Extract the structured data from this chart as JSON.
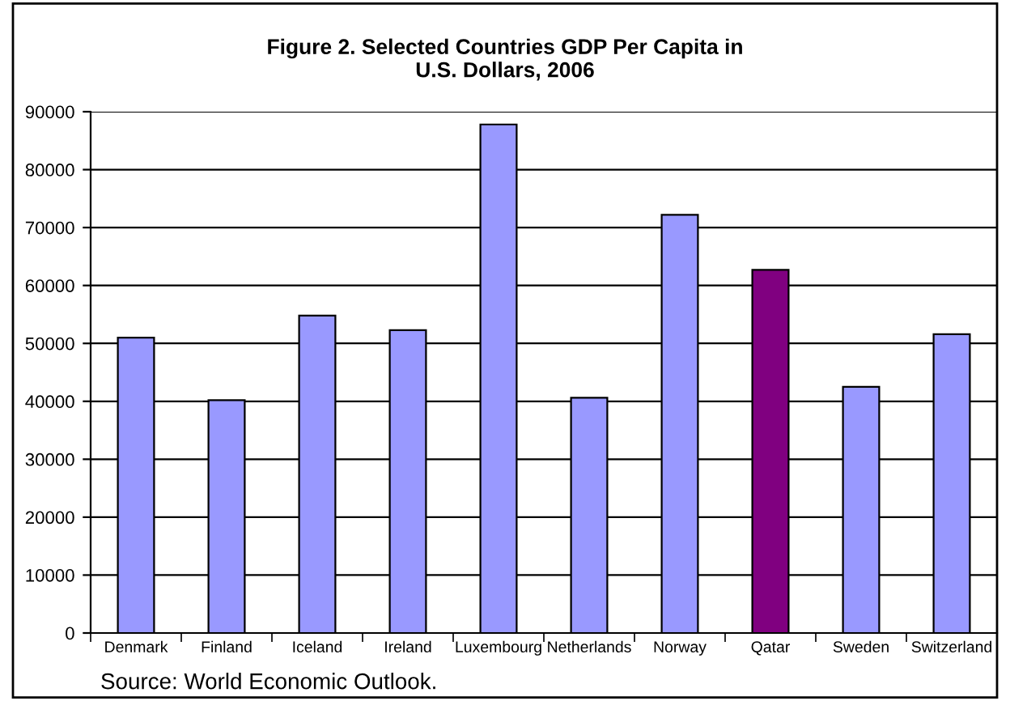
{
  "chart_data": {
    "type": "bar",
    "title": "Figure 2. Selected Countries GDP Per Capita in\nU.S. Dollars, 2006",
    "categories": [
      "Denmark",
      "Finland",
      "Iceland",
      "Ireland",
      "Luxembourg",
      "Netherlands",
      "Norway",
      "Qatar",
      "Sweden",
      "Switzerland"
    ],
    "values": [
      51000,
      40200,
      54800,
      52300,
      87800,
      40600,
      72200,
      62700,
      42500,
      51600
    ],
    "colors": [
      "#9999ff",
      "#9999ff",
      "#9999ff",
      "#9999ff",
      "#9999ff",
      "#9999ff",
      "#9999ff",
      "#800080",
      "#9999ff",
      "#9999ff"
    ],
    "ylim": [
      0,
      90000
    ],
    "yticks": [
      0,
      10000,
      20000,
      30000,
      40000,
      50000,
      60000,
      70000,
      80000,
      90000
    ],
    "grid": "y",
    "annotations": [
      "Source: World Economic Outlook."
    ]
  }
}
